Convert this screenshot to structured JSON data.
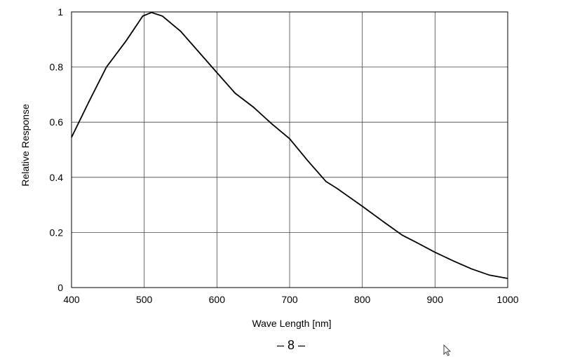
{
  "chart_data": {
    "type": "line",
    "title": "",
    "xlabel": "Wave Length [nm]",
    "ylabel": "Relative Response",
    "xlim": [
      400,
      1000
    ],
    "ylim": [
      0,
      1
    ],
    "x_ticks": [
      400,
      500,
      600,
      700,
      800,
      900,
      1000
    ],
    "y_ticks": [
      0,
      0.2,
      0.4,
      0.6,
      0.8,
      1
    ],
    "y_tick_labels": [
      "0",
      "0.2",
      "0.4",
      "0.6",
      "0.8",
      "1"
    ],
    "grid": true,
    "series": [
      {
        "color": "#000000",
        "x": [
          400,
          425,
          448,
          475,
          498,
          510,
          525,
          550,
          575,
          600,
          625,
          650,
          675,
          700,
          725,
          750,
          765,
          800,
          830,
          855,
          875,
          900,
          925,
          950,
          975,
          1000
        ],
        "y": [
          0.545,
          0.68,
          0.8,
          0.895,
          0.985,
          0.998,
          0.985,
          0.93,
          0.855,
          0.78,
          0.705,
          0.655,
          0.595,
          0.54,
          0.46,
          0.385,
          0.36,
          0.295,
          0.237,
          0.19,
          0.163,
          0.128,
          0.097,
          0.068,
          0.045,
          0.033
        ]
      }
    ]
  },
  "footer": {
    "page_number": "– 8 –"
  }
}
